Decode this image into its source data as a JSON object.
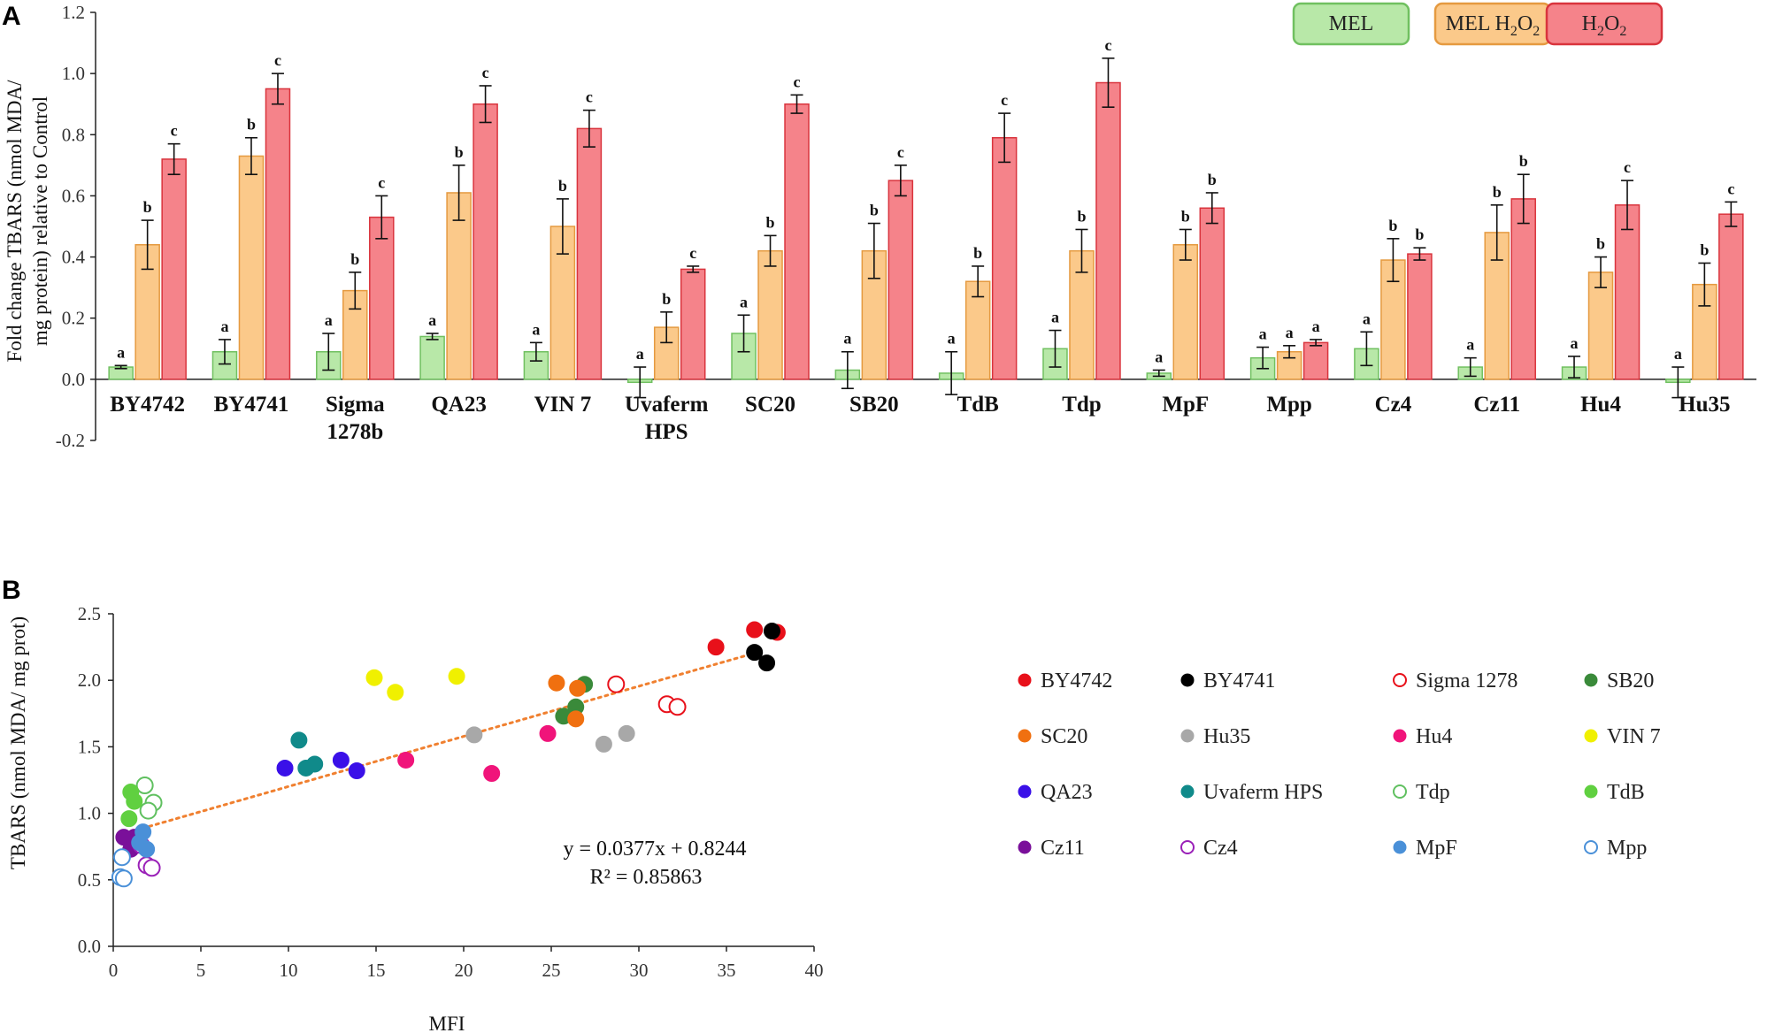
{
  "panel_a_label": "A",
  "panel_b_label": "B",
  "chart_data": [
    {
      "type": "bar",
      "panel": "A",
      "ylabel_line1": "Fold change TBARS (nmol MDA/",
      "ylabel_line2": "mg protein) relative to Control",
      "ylim": [
        -0.2,
        1.2
      ],
      "yticks": [
        "1.2",
        "1.0",
        "0.8",
        "0.6",
        "0.4",
        "0.2",
        "0.0",
        "-0.2"
      ],
      "categories": [
        "BY4742",
        "BY4741",
        "Sigma\n1278b",
        "QA23",
        "VIN 7",
        "Uvaferm\nHPS",
        "SC20",
        "SB20",
        "TdB",
        "Tdp",
        "MpF",
        "Mpp",
        "Cz4",
        "Cz11",
        "Hu4",
        "Hu35"
      ],
      "legend": {
        "mel": "MEL",
        "mel_h2o2_prefix": "MEL H",
        "mel_h2o2_sub1": "2",
        "mel_h2o2_mid": "O",
        "mel_h2o2_sub2": "2",
        "h2o2_prefix": "H",
        "h2o2_sub1": "2",
        "h2o2_mid": "O",
        "h2o2_sub2": "2"
      },
      "series": [
        {
          "name": "MEL",
          "fill": "#b8e8a8",
          "stroke": "#70c060",
          "values": [
            0.04,
            0.09,
            0.09,
            0.14,
            0.09,
            -0.01,
            0.15,
            0.03,
            0.02,
            0.1,
            0.02,
            0.07,
            0.1,
            0.04,
            0.04,
            -0.01
          ],
          "errors": [
            0.005,
            0.04,
            0.06,
            0.01,
            0.03,
            0.05,
            0.06,
            0.06,
            0.07,
            0.06,
            0.01,
            0.035,
            0.055,
            0.03,
            0.035,
            0.05
          ],
          "letters": [
            "a",
            "a",
            "a",
            "a",
            "a",
            "a",
            "a",
            "a",
            "a",
            "a",
            "a",
            "a",
            "a",
            "a",
            "a",
            "a"
          ]
        },
        {
          "name": "MEL H2O2",
          "fill": "#fbc98a",
          "stroke": "#e59a40",
          "values": [
            0.44,
            0.73,
            0.29,
            0.61,
            0.5,
            0.17,
            0.42,
            0.42,
            0.32,
            0.42,
            0.44,
            0.09,
            0.39,
            0.48,
            0.35,
            0.31
          ],
          "errors": [
            0.08,
            0.06,
            0.06,
            0.09,
            0.09,
            0.05,
            0.05,
            0.09,
            0.05,
            0.07,
            0.05,
            0.02,
            0.07,
            0.09,
            0.05,
            0.07
          ],
          "letters": [
            "b",
            "b",
            "b",
            "b",
            "b",
            "b",
            "b",
            "b",
            "b",
            "b",
            "b",
            "a",
            "b",
            "b",
            "b",
            "b"
          ]
        },
        {
          "name": "H2O2",
          "fill": "#f5838a",
          "stroke": "#d9343d",
          "values": [
            0.72,
            0.95,
            0.53,
            0.9,
            0.82,
            0.36,
            0.9,
            0.65,
            0.79,
            0.97,
            0.56,
            0.12,
            0.41,
            0.59,
            0.57,
            0.54
          ],
          "errors": [
            0.05,
            0.05,
            0.07,
            0.06,
            0.06,
            0.01,
            0.03,
            0.05,
            0.08,
            0.08,
            0.05,
            0.01,
            0.02,
            0.08,
            0.08,
            0.04
          ],
          "letters": [
            "c",
            "c",
            "c",
            "c",
            "c",
            "c",
            "c",
            "c",
            "c",
            "c",
            "b",
            "a",
            "b",
            "b",
            "c",
            "c"
          ]
        }
      ]
    },
    {
      "type": "scatter",
      "panel": "B",
      "xlabel": "MFI",
      "ylabel": "TBARS (nmol MDA/ mg prot)",
      "xlim": [
        0,
        40
      ],
      "ylim": [
        0,
        2.5
      ],
      "xticks": [
        "0",
        "5",
        "10",
        "15",
        "20",
        "25",
        "30",
        "35",
        "40"
      ],
      "yticks": [
        "0.0",
        "0.5",
        "1.0",
        "1.5",
        "2.0",
        "2.5"
      ],
      "equation": "y = 0.0377x + 0.8244",
      "r_squared": "R² = 0.85863",
      "trend": {
        "slope": 0.0377,
        "intercept": 0.8244,
        "x_from": 0.5,
        "x_to": 37,
        "color": "#f08030"
      },
      "series": [
        {
          "name": "BY4742",
          "color": "#e8101a",
          "filled": true,
          "points": [
            [
              34.4,
              2.25
            ],
            [
              36.6,
              2.38
            ],
            [
              37.9,
              2.36
            ]
          ]
        },
        {
          "name": "BY4741",
          "color": "#000000",
          "filled": true,
          "points": [
            [
              36.6,
              2.21
            ],
            [
              37.6,
              2.37
            ],
            [
              37.3,
              2.13
            ]
          ]
        },
        {
          "name": "Sigma 1278",
          "color": "#e8101a",
          "filled": false,
          "points": [
            [
              28.7,
              1.97
            ],
            [
              31.6,
              1.82
            ],
            [
              32.2,
              1.8
            ]
          ]
        },
        {
          "name": "SB20",
          "color": "#3a8a3a",
          "filled": true,
          "points": [
            [
              25.7,
              1.73
            ],
            [
              26.4,
              1.8
            ],
            [
              26.9,
              1.97
            ]
          ]
        },
        {
          "name": "SC20",
          "color": "#f07010",
          "filled": true,
          "points": [
            [
              25.3,
              1.98
            ],
            [
              26.5,
              1.94
            ],
            [
              26.4,
              1.71
            ]
          ]
        },
        {
          "name": "Hu35",
          "color": "#a8a8a8",
          "filled": true,
          "points": [
            [
              20.6,
              1.59
            ],
            [
              28.0,
              1.52
            ],
            [
              29.3,
              1.6
            ]
          ]
        },
        {
          "name": "Hu4",
          "color": "#f0147a",
          "filled": true,
          "points": [
            [
              16.7,
              1.4
            ],
            [
              21.6,
              1.3
            ],
            [
              24.8,
              1.6
            ]
          ]
        },
        {
          "name": "VIN 7",
          "color": "#f0f000",
          "filled": true,
          "points": [
            [
              14.9,
              2.02
            ],
            [
              16.1,
              1.91
            ],
            [
              19.6,
              2.03
            ]
          ]
        },
        {
          "name": "QA23",
          "color": "#3a10e8",
          "filled": true,
          "points": [
            [
              9.8,
              1.34
            ],
            [
              13.0,
              1.4
            ],
            [
              13.9,
              1.32
            ]
          ]
        },
        {
          "name": "Uvaferm HPS",
          "color": "#108a8a",
          "filled": true,
          "points": [
            [
              10.6,
              1.55
            ],
            [
              11.0,
              1.34
            ],
            [
              11.5,
              1.37
            ]
          ]
        },
        {
          "name": "Tdp",
          "color": "#60c060",
          "filled": false,
          "points": [
            [
              1.8,
              1.21
            ],
            [
              2.3,
              1.08
            ],
            [
              2.0,
              1.02
            ]
          ]
        },
        {
          "name": "TdB",
          "color": "#60d040",
          "filled": true,
          "points": [
            [
              1.0,
              1.16
            ],
            [
              1.2,
              1.09
            ],
            [
              0.9,
              0.96
            ]
          ]
        },
        {
          "name": "Cz11",
          "color": "#7a109a",
          "filled": true,
          "points": [
            [
              0.6,
              0.82
            ],
            [
              1.2,
              0.82
            ],
            [
              1.0,
              0.73
            ]
          ]
        },
        {
          "name": "Cz4",
          "color": "#9a20b8",
          "filled": false,
          "points": [
            [
              1.9,
              0.61
            ],
            [
              2.2,
              0.59
            ],
            [
              1.6,
              0.76
            ]
          ]
        },
        {
          "name": "MpF",
          "color": "#4a90d8",
          "filled": true,
          "points": [
            [
              1.7,
              0.86
            ],
            [
              1.9,
              0.73
            ],
            [
              1.5,
              0.78
            ]
          ]
        },
        {
          "name": "Mpp",
          "color": "#4a90d8",
          "filled": false,
          "points": [
            [
              0.4,
              0.52
            ],
            [
              0.5,
              0.67
            ],
            [
              0.6,
              0.51
            ]
          ]
        }
      ]
    }
  ]
}
